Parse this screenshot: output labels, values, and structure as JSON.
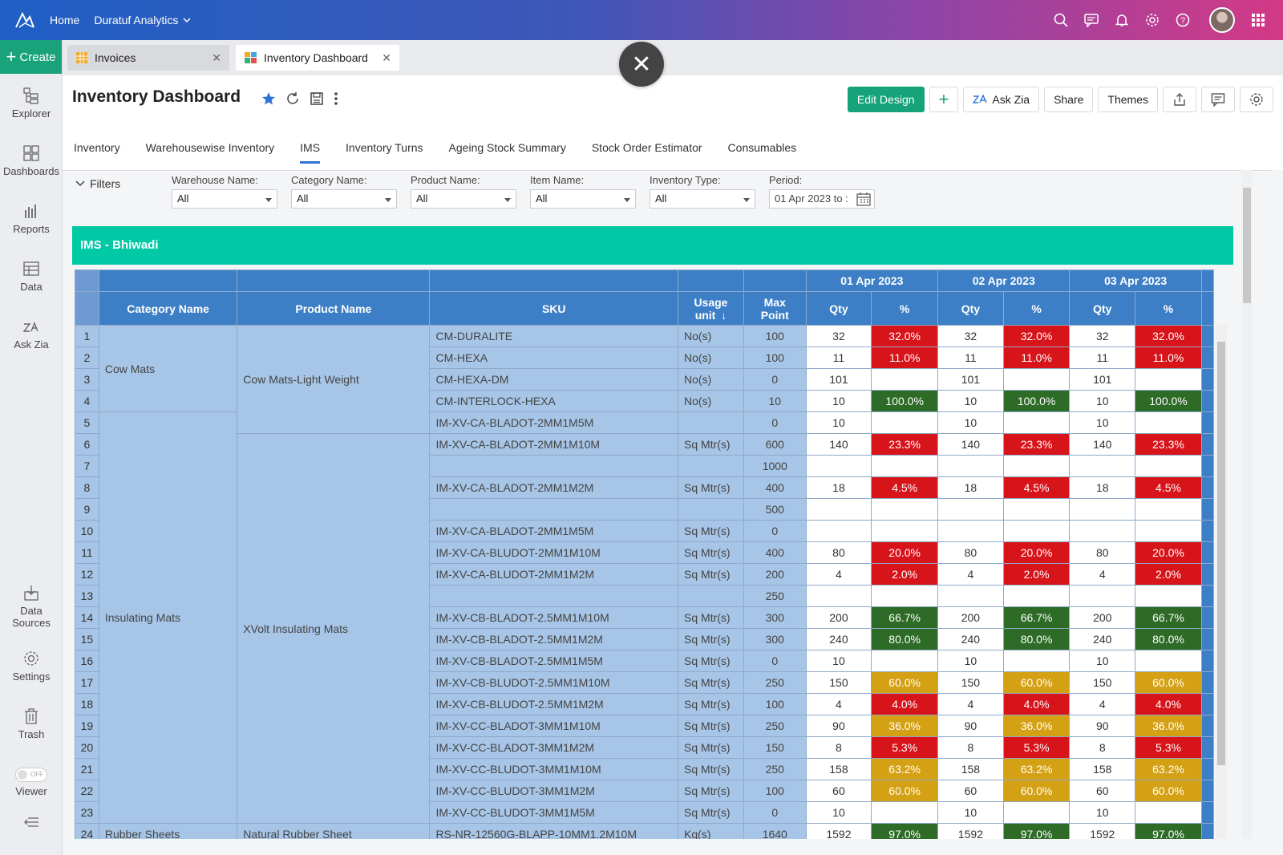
{
  "topbar": {
    "home": "Home",
    "org": "Duratuf Analytics"
  },
  "sidebar": {
    "create": "Create",
    "items": [
      "Explorer",
      "Dashboards",
      "Reports",
      "Data",
      "Ask Zia",
      "Data Sources",
      "Settings",
      "Trash",
      "Viewer"
    ],
    "toggle": "OFF"
  },
  "tabs": [
    {
      "label": "Invoices"
    },
    {
      "label": "Inventory Dashboard"
    }
  ],
  "header": {
    "title": "Inventory Dashboard",
    "edit_design": "Edit Design",
    "ask_zia": "Ask Zia",
    "share": "Share",
    "themes": "Themes"
  },
  "subtabs": [
    "Inventory",
    "Warehousewise Inventory",
    "IMS",
    "Inventory Turns",
    "Ageing Stock Summary",
    "Stock Order Estimator",
    "Consumables"
  ],
  "filters": {
    "toggle": "Filters",
    "fields": [
      {
        "label": "Warehouse Name:",
        "value": "All"
      },
      {
        "label": "Category Name:",
        "value": "All"
      },
      {
        "label": "Product Name:",
        "value": "All"
      },
      {
        "label": "Item Name:",
        "value": "All"
      },
      {
        "label": "Inventory Type:",
        "value": "All"
      }
    ],
    "period_label": "Period:",
    "period_value": "01 Apr 2023 to :"
  },
  "panel": {
    "title": "IMS - Bhiwadi",
    "columns": {
      "category": "Category Name",
      "product": "Product Name",
      "sku": "SKU",
      "usage_unit": "Usage unit",
      "max_point": "Max Point",
      "qty": "Qty",
      "pct": "%"
    },
    "dates": [
      "01 Apr 2023",
      "02 Apr 2023",
      "03 Apr 2023"
    ],
    "colors": {
      "red": "#d8141b",
      "green": "#2e6b27",
      "amber": "#d4a114"
    },
    "rows": [
      {
        "n": "1",
        "cat": "Cow Mats",
        "prod": "Cow Mats-Light Weight",
        "sku": "CM-DURALITE",
        "unit": "No(s)",
        "max": "100",
        "qty": "32",
        "pct": "32.0%",
        "c": "red"
      },
      {
        "n": "2",
        "cat": "",
        "prod": "",
        "sku": "CM-HEXA",
        "unit": "No(s)",
        "max": "100",
        "qty": "11",
        "pct": "11.0%",
        "c": "red"
      },
      {
        "n": "3",
        "cat": "",
        "prod": "",
        "sku": "CM-HEXA-DM",
        "unit": "No(s)",
        "max": "0",
        "qty": "101",
        "pct": "",
        "c": ""
      },
      {
        "n": "4",
        "cat": "",
        "prod": "",
        "sku": "CM-INTERLOCK-HEXA",
        "unit": "No(s)",
        "max": "10",
        "qty": "10",
        "pct": "100.0%",
        "c": "green"
      },
      {
        "n": "5",
        "cat": "Insulating Mats",
        "prod": "",
        "sku": "IM-XV-CA-BLADOT-2MM1M5M",
        "unit": "",
        "max": "0",
        "qty": "10",
        "pct": "",
        "c": ""
      },
      {
        "n": "6",
        "cat": "",
        "prod": "XVolt Insulating Mats",
        "sku": "IM-XV-CA-BLADOT-2MM1M10M",
        "unit": "Sq Mtr(s)",
        "max": "600",
        "qty": "140",
        "pct": "23.3%",
        "c": "red"
      },
      {
        "n": "7",
        "cat": "",
        "prod": "",
        "sku": "",
        "unit": "",
        "max": "1000",
        "qty": "",
        "pct": "",
        "c": ""
      },
      {
        "n": "8",
        "cat": "",
        "prod": "",
        "sku": "IM-XV-CA-BLADOT-2MM1M2M",
        "unit": "Sq Mtr(s)",
        "max": "400",
        "qty": "18",
        "pct": "4.5%",
        "c": "red"
      },
      {
        "n": "9",
        "cat": "",
        "prod": "",
        "sku": "",
        "unit": "",
        "max": "500",
        "qty": "",
        "pct": "",
        "c": ""
      },
      {
        "n": "10",
        "cat": "",
        "prod": "",
        "sku": "IM-XV-CA-BLADOT-2MM1M5M",
        "unit": "Sq Mtr(s)",
        "max": "0",
        "qty": "",
        "pct": "",
        "c": ""
      },
      {
        "n": "11",
        "cat": "",
        "prod": "",
        "sku": "IM-XV-CA-BLUDOT-2MM1M10M",
        "unit": "Sq Mtr(s)",
        "max": "400",
        "qty": "80",
        "pct": "20.0%",
        "c": "red"
      },
      {
        "n": "12",
        "cat": "",
        "prod": "",
        "sku": "IM-XV-CA-BLUDOT-2MM1M2M",
        "unit": "Sq Mtr(s)",
        "max": "200",
        "qty": "4",
        "pct": "2.0%",
        "c": "red"
      },
      {
        "n": "13",
        "cat": "",
        "prod": "",
        "sku": "",
        "unit": "",
        "max": "250",
        "qty": "",
        "pct": "",
        "c": ""
      },
      {
        "n": "14",
        "cat": "",
        "prod": "",
        "sku": "IM-XV-CB-BLADOT-2.5MM1M10M",
        "unit": "Sq Mtr(s)",
        "max": "300",
        "qty": "200",
        "pct": "66.7%",
        "c": "green"
      },
      {
        "n": "15",
        "cat": "",
        "prod": "",
        "sku": "IM-XV-CB-BLADOT-2.5MM1M2M",
        "unit": "Sq Mtr(s)",
        "max": "300",
        "qty": "240",
        "pct": "80.0%",
        "c": "green"
      },
      {
        "n": "16",
        "cat": "",
        "prod": "",
        "sku": "IM-XV-CB-BLADOT-2.5MM1M5M",
        "unit": "Sq Mtr(s)",
        "max": "0",
        "qty": "10",
        "pct": "",
        "c": ""
      },
      {
        "n": "17",
        "cat": "",
        "prod": "",
        "sku": "IM-XV-CB-BLUDOT-2.5MM1M10M",
        "unit": "Sq Mtr(s)",
        "max": "250",
        "qty": "150",
        "pct": "60.0%",
        "c": "amber"
      },
      {
        "n": "18",
        "cat": "",
        "prod": "",
        "sku": "IM-XV-CB-BLUDOT-2.5MM1M2M",
        "unit": "Sq Mtr(s)",
        "max": "100",
        "qty": "4",
        "pct": "4.0%",
        "c": "red"
      },
      {
        "n": "19",
        "cat": "",
        "prod": "",
        "sku": "IM-XV-CC-BLADOT-3MM1M10M",
        "unit": "Sq Mtr(s)",
        "max": "250",
        "qty": "90",
        "pct": "36.0%",
        "c": "amber"
      },
      {
        "n": "20",
        "cat": "",
        "prod": "",
        "sku": "IM-XV-CC-BLADOT-3MM1M2M",
        "unit": "Sq Mtr(s)",
        "max": "150",
        "qty": "8",
        "pct": "5.3%",
        "c": "red"
      },
      {
        "n": "21",
        "cat": "",
        "prod": "",
        "sku": "IM-XV-CC-BLUDOT-3MM1M10M",
        "unit": "Sq Mtr(s)",
        "max": "250",
        "qty": "158",
        "pct": "63.2%",
        "c": "amber"
      },
      {
        "n": "22",
        "cat": "",
        "prod": "",
        "sku": "IM-XV-CC-BLUDOT-3MM1M2M",
        "unit": "Sq Mtr(s)",
        "max": "100",
        "qty": "60",
        "pct": "60.0%",
        "c": "amber"
      },
      {
        "n": "23",
        "cat": "",
        "prod": "",
        "sku": "IM-XV-CC-BLUDOT-3MM1M5M",
        "unit": "Sq Mtr(s)",
        "max": "0",
        "qty": "10",
        "pct": "",
        "c": ""
      },
      {
        "n": "24",
        "cat": "Rubber Sheets",
        "prod": "Natural Rubber Sheet",
        "sku": "RS-NR-12560G-BLAPP-10MM1.2M10M",
        "unit": "Kg(s)",
        "max": "1640",
        "qty": "1592",
        "pct": "97.0%",
        "c": "green"
      }
    ]
  }
}
